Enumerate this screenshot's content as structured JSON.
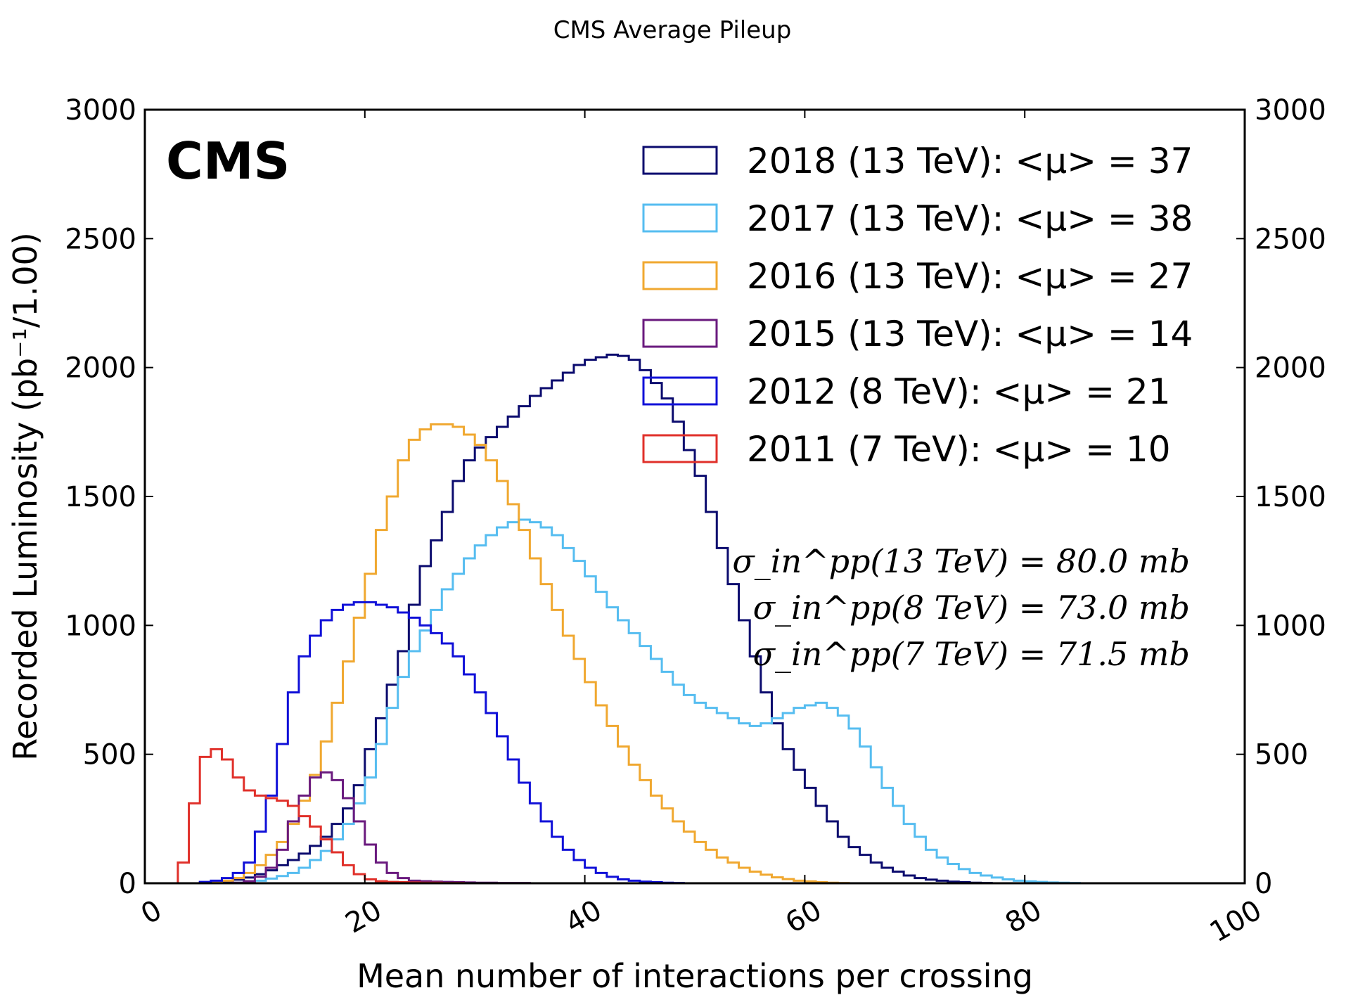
{
  "figure_title": "CMS Average Pileup",
  "cms_label": "CMS",
  "annotations": [
    "σ_in^pp(13 TeV) = 80.0 mb",
    "σ_in^pp(8 TeV) = 73.0 mb",
    "σ_in^pp(7 TeV) = 71.5 mb"
  ],
  "chart_data": {
    "type": "line",
    "style": "step histogram",
    "title": "CMS Average Pileup",
    "xlabel": "Mean number of interactions per crossing",
    "ylabel": "Recorded Luminosity (pb⁻¹/1.00)",
    "xlim": [
      0,
      100
    ],
    "ylim": [
      0,
      3000
    ],
    "x_ticks": [
      "0",
      "20",
      "40",
      "60",
      "80",
      "100"
    ],
    "y_ticks": [
      "0",
      "500",
      "1000",
      "1500",
      "2000",
      "2500",
      "3000"
    ],
    "bin_width": 1,
    "bin_start": 0,
    "grid": false,
    "legend_position": "top-right",
    "series": [
      {
        "name": "2018 (13 TeV): <μ> = 37",
        "color": "#0b0b6e",
        "values": [
          0,
          0,
          0,
          0,
          0,
          2,
          4,
          8,
          14,
          22,
          35,
          50,
          70,
          90,
          115,
          145,
          180,
          230,
          290,
          380,
          520,
          640,
          770,
          900,
          1080,
          1230,
          1330,
          1440,
          1560,
          1640,
          1690,
          1730,
          1770,
          1810,
          1850,
          1890,
          1920,
          1950,
          1980,
          2010,
          2030,
          2040,
          2050,
          2045,
          2030,
          1990,
          1940,
          1880,
          1790,
          1680,
          1580,
          1440,
          1300,
          1160,
          1020,
          880,
          740,
          620,
          520,
          440,
          370,
          300,
          240,
          180,
          140,
          110,
          80,
          60,
          45,
          30,
          20,
          14,
          10,
          6,
          4,
          2,
          1,
          0,
          0,
          0,
          0,
          0,
          0,
          0,
          0,
          0,
          0,
          0,
          0,
          0,
          0,
          0,
          0,
          0,
          0,
          0,
          0,
          0,
          0,
          0
        ]
      },
      {
        "name": "2017 (13 TeV): <μ> = 38",
        "color": "#56bdf0",
        "values": [
          0,
          0,
          0,
          0,
          0,
          0,
          0,
          0,
          2,
          5,
          10,
          18,
          28,
          40,
          60,
          90,
          125,
          170,
          230,
          310,
          410,
          540,
          680,
          800,
          900,
          980,
          1060,
          1140,
          1200,
          1260,
          1310,
          1350,
          1380,
          1400,
          1410,
          1400,
          1380,
          1350,
          1300,
          1250,
          1190,
          1130,
          1070,
          1020,
          970,
          920,
          870,
          820,
          770,
          730,
          700,
          680,
          660,
          640,
          620,
          610,
          620,
          640,
          660,
          680,
          690,
          700,
          680,
          650,
          600,
          530,
          450,
          370,
          300,
          230,
          180,
          130,
          100,
          75,
          55,
          40,
          30,
          22,
          15,
          10,
          7,
          5,
          3,
          2,
          1,
          0,
          0,
          0,
          0,
          0,
          0,
          0,
          0,
          0,
          0,
          0,
          0,
          0,
          0,
          0
        ]
      },
      {
        "name": "2016 (13 TeV): <μ> = 27",
        "color": "#f0a830",
        "values": [
          0,
          0,
          0,
          0,
          0,
          2,
          5,
          10,
          20,
          40,
          70,
          110,
          160,
          230,
          320,
          420,
          550,
          700,
          860,
          1030,
          1200,
          1370,
          1500,
          1640,
          1720,
          1760,
          1780,
          1780,
          1770,
          1740,
          1700,
          1640,
          1560,
          1470,
          1370,
          1260,
          1160,
          1060,
          960,
          870,
          780,
          690,
          610,
          530,
          460,
          400,
          340,
          290,
          240,
          200,
          160,
          130,
          100,
          80,
          60,
          45,
          33,
          23,
          16,
          10,
          7,
          4,
          2,
          1,
          0,
          0,
          0,
          0,
          0,
          0,
          0,
          0,
          0,
          0,
          0,
          0,
          0,
          0,
          0,
          0,
          0,
          0,
          0,
          0,
          0,
          0,
          0,
          0,
          0,
          0,
          0,
          0,
          0,
          0,
          0,
          0,
          0,
          0,
          0,
          0
        ]
      },
      {
        "name": "2015 (13 TeV): <μ> = 14",
        "color": "#6a1a7e",
        "values": [
          0,
          0,
          0,
          0,
          0,
          0,
          0,
          0,
          2,
          8,
          25,
          60,
          130,
          240,
          340,
          410,
          430,
          400,
          330,
          240,
          150,
          80,
          40,
          20,
          10,
          8,
          6,
          5,
          4,
          3,
          2,
          2,
          1,
          1,
          1,
          0,
          0,
          0,
          0,
          0,
          0,
          0,
          0,
          0,
          0,
          0,
          0,
          0,
          0,
          0,
          0,
          0,
          0,
          0,
          0,
          0,
          0,
          0,
          0,
          0,
          0,
          0,
          0,
          0,
          0,
          0,
          0,
          0,
          0,
          0,
          0,
          0,
          0,
          0,
          0,
          0,
          0,
          0,
          0,
          0,
          0,
          0,
          0,
          0,
          0,
          0,
          0,
          0,
          0,
          0,
          0,
          0,
          0,
          0,
          0,
          0,
          0,
          0,
          0,
          0
        ]
      },
      {
        "name": "2012 (8 TeV):   <μ> = 21",
        "color": "#1010d8",
        "values": [
          0,
          0,
          0,
          0,
          0,
          5,
          10,
          20,
          40,
          80,
          200,
          340,
          540,
          740,
          880,
          960,
          1020,
          1060,
          1080,
          1090,
          1090,
          1080,
          1070,
          1050,
          1030,
          1000,
          970,
          930,
          880,
          810,
          740,
          660,
          570,
          480,
          390,
          310,
          240,
          180,
          130,
          90,
          60,
          40,
          25,
          15,
          10,
          6,
          4,
          2,
          1,
          0,
          0,
          0,
          0,
          0,
          0,
          0,
          0,
          0,
          0,
          0,
          0,
          0,
          0,
          0,
          0,
          0,
          0,
          0,
          0,
          0,
          0,
          0,
          0,
          0,
          0,
          0,
          0,
          0,
          0,
          0,
          0,
          0,
          0,
          0,
          0,
          0,
          0,
          0,
          0,
          0,
          0,
          0,
          0,
          0,
          0,
          0,
          0,
          0,
          0,
          0
        ]
      },
      {
        "name": "2011 (7 TeV):   <μ> = 10",
        "color": "#e0302a",
        "values": [
          0,
          0,
          0,
          80,
          310,
          490,
          520,
          480,
          410,
          360,
          340,
          330,
          320,
          300,
          260,
          220,
          170,
          120,
          70,
          35,
          15,
          8,
          5,
          4,
          3,
          2,
          2,
          1,
          1,
          0,
          0,
          0,
          0,
          0,
          0,
          0,
          0,
          0,
          0,
          0,
          0,
          0,
          0,
          0,
          0,
          0,
          0,
          0,
          0,
          0,
          0,
          0,
          0,
          0,
          0,
          0,
          0,
          0,
          0,
          0,
          0,
          0,
          0,
          0,
          0,
          0,
          0,
          0,
          0,
          0,
          0,
          0,
          0,
          0,
          0,
          0,
          0,
          0,
          0,
          0,
          0,
          0,
          0,
          0,
          0,
          0,
          0,
          0,
          0,
          0,
          0,
          0,
          0,
          0,
          0,
          0,
          0,
          0,
          0,
          0
        ]
      }
    ]
  }
}
